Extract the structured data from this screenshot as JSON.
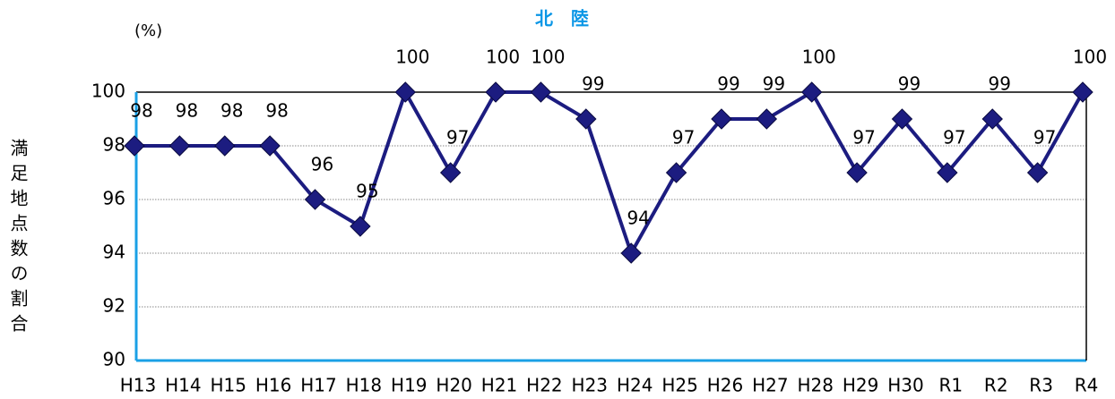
{
  "chart_data": {
    "type": "line",
    "title": "北　陸",
    "unit_label": "(%)",
    "y_label": "満足地点数の割合",
    "categories": [
      "H13",
      "H14",
      "H15",
      "H16",
      "H17",
      "H18",
      "H19",
      "H20",
      "H21",
      "H22",
      "H23",
      "H24",
      "H25",
      "H26",
      "H27",
      "H28",
      "H29",
      "H30",
      "R1",
      "R2",
      "R3",
      "R4"
    ],
    "values": [
      98,
      98,
      98,
      98,
      96,
      95,
      100,
      97,
      100,
      100,
      99,
      94,
      97,
      99,
      99,
      100,
      97,
      99,
      97,
      99,
      97,
      100
    ],
    "color": "#1c1c80",
    "title_color": "#0a96e6",
    "axis_color": "#1aa0e6",
    "ylim": [
      90,
      100
    ],
    "yticks": [
      90,
      92,
      94,
      96,
      98,
      100
    ],
    "grid": true
  }
}
